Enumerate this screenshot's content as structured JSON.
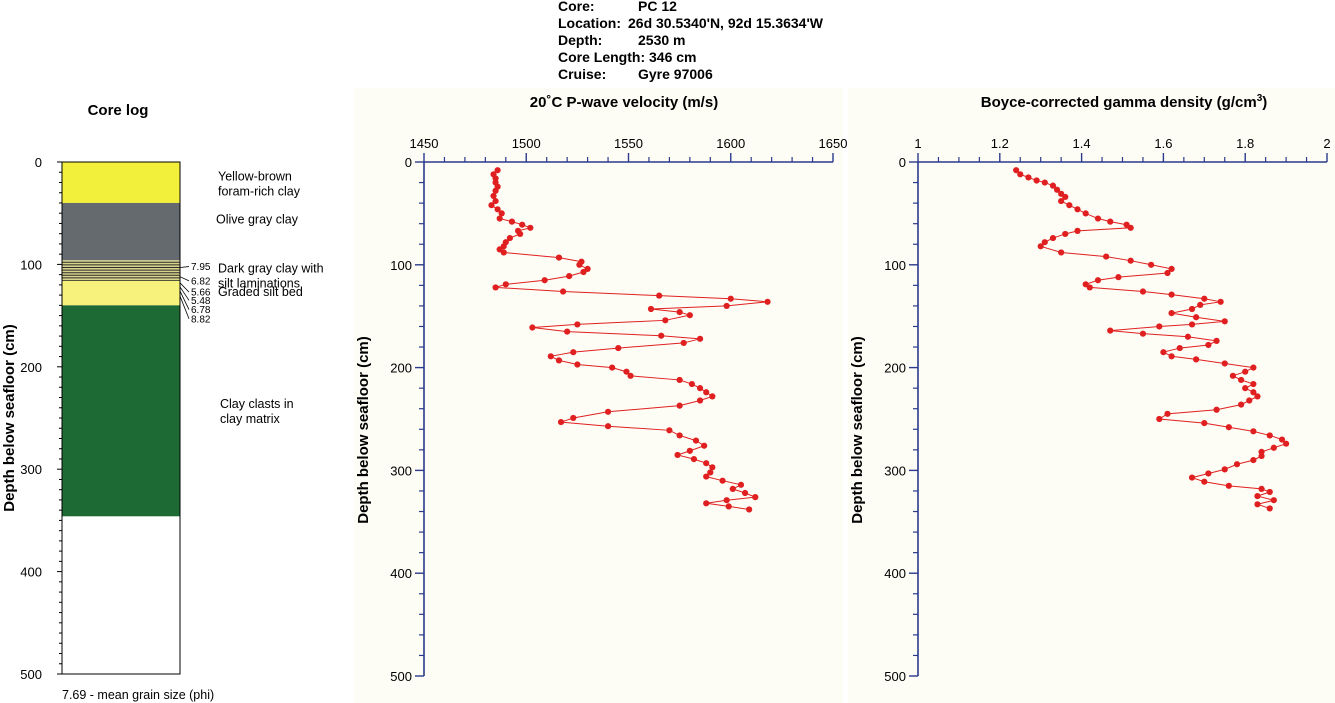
{
  "header": {
    "rows": [
      {
        "label": "Core:",
        "value": "PC 12"
      },
      {
        "label": "Location:",
        "value": "26d 30.5340'N, 92d 15.3634'W"
      },
      {
        "label": "Depth:",
        "value": "2530 m"
      },
      {
        "label": "Core Length:",
        "value": "346 cm"
      },
      {
        "label": "Cruise:",
        "value": "Gyre 97006"
      }
    ]
  },
  "colors": {
    "series": "#e02020",
    "axis": "#2b3a8c",
    "yellow": "#f2f03a",
    "pale_yellow": "#f7f27c",
    "olive_gray": "#646a6e",
    "green": "#1e6a34",
    "plot_bg": "#fdfdf6"
  },
  "core_log": {
    "title": "Core log",
    "ylabel": "Depth below seafloor (cm)",
    "yticks": [
      "0",
      "100",
      "200",
      "300",
      "400",
      "500"
    ],
    "units": [
      {
        "top": 0,
        "bottom": 40,
        "fill": "yellow",
        "label": [
          "Yellow-brown",
          "foram-rich clay"
        ],
        "label_depth": 18
      },
      {
        "top": 40,
        "bottom": 96,
        "fill": "olive_gray",
        "label": [
          "Olive gray clay"
        ],
        "label_depth": 60
      },
      {
        "top": 96,
        "bottom": 116,
        "fill": "laminated",
        "label": [
          "Dark gray clay with",
          "silt laminations"
        ],
        "label_depth": 108
      },
      {
        "top": 116,
        "bottom": 140,
        "fill": "pale_yellow",
        "label": [
          "Graded silt bed"
        ],
        "label_depth": 131
      },
      {
        "top": 140,
        "bottom": 346,
        "fill": "green",
        "label": [
          "Clay clasts in",
          "clay matrix"
        ],
        "label_depth": 240
      }
    ],
    "grain_sizes": [
      {
        "value": "7.95",
        "depth": 106
      },
      {
        "value": "6.82",
        "depth": 120
      },
      {
        "value": "5.66",
        "depth": 131
      },
      {
        "value": "5.48",
        "depth": 139
      },
      {
        "value": "6.78",
        "depth": 148
      },
      {
        "value": "8.82",
        "depth": 157
      }
    ],
    "footnote": "7.69 - mean grain size (phi)"
  },
  "chart_data": [
    {
      "type": "line",
      "title": "20˚C P-wave velocity (m/s)",
      "ylabel": "Depth below seafloor (cm)",
      "xlabel": "",
      "xlim": [
        1450,
        1650
      ],
      "ylim": [
        0,
        500
      ],
      "xticks": [
        "1450",
        "1500",
        "1550",
        "1600",
        "1650"
      ],
      "yticks": [
        "0",
        "100",
        "200",
        "300",
        "400",
        "500"
      ],
      "series": [
        {
          "points": [
            [
              1486,
              8
            ],
            [
              1484,
              12
            ],
            [
              1485,
              16
            ],
            [
              1485,
              20
            ],
            [
              1486,
              24
            ],
            [
              1485,
              28
            ],
            [
              1484,
              33
            ],
            [
              1485,
              38
            ],
            [
              1483,
              42
            ],
            [
              1486,
              46
            ],
            [
              1488,
              50
            ],
            [
              1487,
              55
            ],
            [
              1493,
              58
            ],
            [
              1498,
              61
            ],
            [
              1502,
              64
            ],
            [
              1496,
              67
            ],
            [
              1497,
              70
            ],
            [
              1492,
              74
            ],
            [
              1490,
              78
            ],
            [
              1489,
              82
            ],
            [
              1487,
              85
            ],
            [
              1489,
              88
            ],
            [
              1516,
              93
            ],
            [
              1527,
              97
            ],
            [
              1526,
              100
            ],
            [
              1530,
              104
            ],
            [
              1528,
              107
            ],
            [
              1521,
              111
            ],
            [
              1509,
              115
            ],
            [
              1490,
              119
            ],
            [
              1485,
              122
            ],
            [
              1518,
              126
            ],
            [
              1565,
              130
            ],
            [
              1600,
              133
            ],
            [
              1618,
              136
            ],
            [
              1598,
              140
            ],
            [
              1561,
              143
            ],
            [
              1575,
              146
            ],
            [
              1580,
              149
            ],
            [
              1568,
              154
            ],
            [
              1525,
              158
            ],
            [
              1503,
              161
            ],
            [
              1520,
              165
            ],
            [
              1566,
              169
            ],
            [
              1585,
              172
            ],
            [
              1577,
              176
            ],
            [
              1545,
              181
            ],
            [
              1523,
              185
            ],
            [
              1512,
              189
            ],
            [
              1516,
              193
            ],
            [
              1525,
              197
            ],
            [
              1542,
              200
            ],
            [
              1549,
              204
            ],
            [
              1551,
              208
            ],
            [
              1575,
              212
            ],
            [
              1581,
              216
            ],
            [
              1585,
              220
            ],
            [
              1588,
              224
            ],
            [
              1591,
              228
            ],
            [
              1585,
              232
            ],
            [
              1575,
              237
            ],
            [
              1540,
              243
            ],
            [
              1523,
              249
            ],
            [
              1517,
              253
            ],
            [
              1540,
              257
            ],
            [
              1570,
              261
            ],
            [
              1575,
              266
            ],
            [
              1583,
              271
            ],
            [
              1587,
              276
            ],
            [
              1580,
              281
            ],
            [
              1574,
              285
            ],
            [
              1582,
              289
            ],
            [
              1588,
              293
            ],
            [
              1591,
              297
            ],
            [
              1590,
              302
            ],
            [
              1588,
              306
            ],
            [
              1596,
              310
            ],
            [
              1605,
              314
            ],
            [
              1601,
              318
            ],
            [
              1607,
              322
            ],
            [
              1612,
              326
            ],
            [
              1598,
              329
            ],
            [
              1588,
              332
            ],
            [
              1599,
              335
            ],
            [
              1609,
              338
            ]
          ]
        }
      ]
    },
    {
      "type": "line",
      "title": "Boyce-corrected gamma density (g/cm",
      "title_sup": "3",
      "title_end": ")",
      "ylabel": "Depth below seafloor (cm)",
      "xlabel": "",
      "xlim": [
        1,
        2
      ],
      "ylim": [
        0,
        500
      ],
      "xticks": [
        "1",
        "1.2",
        "1.4",
        "1.6",
        "1.8",
        "2"
      ],
      "yticks": [
        "0",
        "100",
        "200",
        "300",
        "400",
        "500"
      ],
      "series": [
        {
          "points": [
            [
              1.24,
              8
            ],
            [
              1.25,
              12
            ],
            [
              1.27,
              15
            ],
            [
              1.29,
              18
            ],
            [
              1.31,
              20
            ],
            [
              1.33,
              23
            ],
            [
              1.34,
              27
            ],
            [
              1.35,
              31
            ],
            [
              1.36,
              34
            ],
            [
              1.35,
              38
            ],
            [
              1.37,
              42
            ],
            [
              1.39,
              46
            ],
            [
              1.41,
              50
            ],
            [
              1.44,
              55
            ],
            [
              1.47,
              58
            ],
            [
              1.51,
              61
            ],
            [
              1.52,
              64
            ],
            [
              1.39,
              67
            ],
            [
              1.36,
              70
            ],
            [
              1.33,
              74
            ],
            [
              1.31,
              78
            ],
            [
              1.3,
              82
            ],
            [
              1.35,
              88
            ],
            [
              1.46,
              92
            ],
            [
              1.52,
              96
            ],
            [
              1.57,
              100
            ],
            [
              1.62,
              104
            ],
            [
              1.61,
              108
            ],
            [
              1.49,
              112
            ],
            [
              1.44,
              115
            ],
            [
              1.41,
              119
            ],
            [
              1.42,
              122
            ],
            [
              1.55,
              126
            ],
            [
              1.62,
              129
            ],
            [
              1.7,
              133
            ],
            [
              1.74,
              136
            ],
            [
              1.69,
              139
            ],
            [
              1.67,
              143
            ],
            [
              1.62,
              147
            ],
            [
              1.68,
              151
            ],
            [
              1.75,
              155
            ],
            [
              1.67,
              158
            ],
            [
              1.59,
              160
            ],
            [
              1.47,
              164
            ],
            [
              1.55,
              167
            ],
            [
              1.66,
              170
            ],
            [
              1.73,
              174
            ],
            [
              1.71,
              178
            ],
            [
              1.64,
              181
            ],
            [
              1.6,
              185
            ],
            [
              1.62,
              189
            ],
            [
              1.68,
              192
            ],
            [
              1.75,
              196
            ],
            [
              1.82,
              200
            ],
            [
              1.8,
              204
            ],
            [
              1.77,
              208
            ],
            [
              1.79,
              212
            ],
            [
              1.82,
              216
            ],
            [
              1.8,
              220
            ],
            [
              1.82,
              224
            ],
            [
              1.83,
              228
            ],
            [
              1.81,
              232
            ],
            [
              1.79,
              236
            ],
            [
              1.73,
              241
            ],
            [
              1.61,
              245
            ],
            [
              1.59,
              250
            ],
            [
              1.7,
              254
            ],
            [
              1.76,
              258
            ],
            [
              1.82,
              262
            ],
            [
              1.86,
              266
            ],
            [
              1.89,
              270
            ],
            [
              1.9,
              274
            ],
            [
              1.87,
              278
            ],
            [
              1.84,
              282
            ],
            [
              1.84,
              286
            ],
            [
              1.82,
              290
            ],
            [
              1.78,
              294
            ],
            [
              1.75,
              299
            ],
            [
              1.71,
              303
            ],
            [
              1.67,
              307
            ],
            [
              1.7,
              311
            ],
            [
              1.76,
              315
            ],
            [
              1.84,
              318
            ],
            [
              1.86,
              321
            ],
            [
              1.83,
              325
            ],
            [
              1.87,
              329
            ],
            [
              1.83,
              333
            ],
            [
              1.86,
              337
            ]
          ]
        }
      ]
    }
  ]
}
